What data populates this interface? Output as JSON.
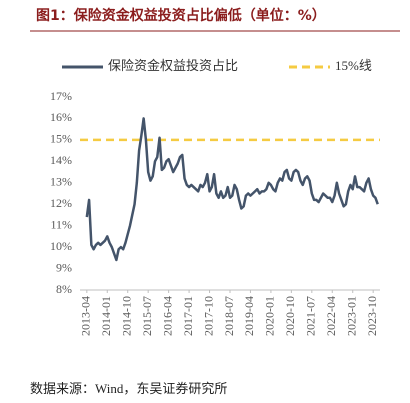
{
  "title": "图1：保险资金权益投资占比偏低（单位：%）",
  "source": "数据来源：Wind，东吴证券研究所",
  "chart_data": {
    "type": "line",
    "x": [
      "2013-04",
      "2013-05",
      "2013-06",
      "2013-07",
      "2013-08",
      "2013-09",
      "2013-10",
      "2013-11",
      "2013-12",
      "2014-01",
      "2014-02",
      "2014-03",
      "2014-04",
      "2014-05",
      "2014-06",
      "2014-07",
      "2014-08",
      "2014-09",
      "2014-10",
      "2014-11",
      "2014-12",
      "2015-01",
      "2015-02",
      "2015-03",
      "2015-04",
      "2015-05",
      "2015-06",
      "2015-07",
      "2015-08",
      "2015-09",
      "2015-10",
      "2015-11",
      "2015-12",
      "2016-01",
      "2016-02",
      "2016-03",
      "2016-04",
      "2016-05",
      "2016-06",
      "2016-07",
      "2016-08",
      "2016-09",
      "2016-10",
      "2016-11",
      "2016-12",
      "2017-01",
      "2017-02",
      "2017-03",
      "2017-04",
      "2017-05",
      "2017-06",
      "2017-07",
      "2017-08",
      "2017-09",
      "2017-10",
      "2017-11",
      "2017-12",
      "2018-01",
      "2018-02",
      "2018-03",
      "2018-04",
      "2018-05",
      "2018-06",
      "2018-07",
      "2018-08",
      "2018-09",
      "2018-10",
      "2018-11",
      "2018-12",
      "2019-01",
      "2019-02",
      "2019-03",
      "2019-04",
      "2019-05",
      "2019-06",
      "2019-07",
      "2019-08",
      "2019-09",
      "2019-10",
      "2019-11",
      "2019-12",
      "2020-01",
      "2020-02",
      "2020-03",
      "2020-04",
      "2020-05",
      "2020-06",
      "2020-07",
      "2020-08",
      "2020-09",
      "2020-10",
      "2020-11",
      "2020-12",
      "2021-01",
      "2021-02",
      "2021-03",
      "2021-04",
      "2021-05",
      "2021-06",
      "2021-07",
      "2021-08",
      "2021-09",
      "2021-10",
      "2021-11",
      "2021-12",
      "2022-01",
      "2022-02",
      "2022-03",
      "2022-04",
      "2022-05",
      "2022-06",
      "2022-07",
      "2022-08",
      "2022-09",
      "2022-10",
      "2022-11",
      "2022-12",
      "2023-01",
      "2023-02",
      "2023-03",
      "2023-04",
      "2023-05",
      "2023-06",
      "2023-07",
      "2023-08",
      "2023-09",
      "2023-10",
      "2023-11",
      "2023-12"
    ],
    "series": [
      {
        "name": "保险资金权益投资占比",
        "color": "#44546a",
        "values": [
          11.4,
          12.2,
          10.1,
          9.9,
          10.1,
          10.2,
          10.1,
          10.2,
          10.3,
          10.5,
          10.2,
          10.0,
          9.7,
          9.4,
          9.9,
          10.0,
          9.9,
          10.2,
          10.6,
          11.0,
          11.5,
          12.0,
          13.0,
          14.5,
          15.2,
          16.0,
          15.0,
          13.5,
          13.1,
          13.3,
          14.0,
          14.2,
          15.1,
          13.6,
          13.7,
          14.0,
          14.1,
          13.8,
          13.5,
          13.7,
          13.9,
          14.2,
          14.3,
          13.2,
          12.9,
          12.8,
          12.9,
          12.8,
          12.7,
          12.6,
          12.9,
          12.8,
          13.0,
          13.4,
          12.6,
          12.8,
          13.4,
          12.5,
          12.3,
          12.6,
          12.3,
          12.4,
          12.8,
          12.3,
          12.4,
          12.9,
          12.7,
          12.2,
          11.8,
          11.9,
          12.4,
          12.5,
          12.4,
          12.5,
          12.6,
          12.7,
          12.5,
          12.6,
          12.6,
          12.7,
          13.0,
          12.9,
          12.7,
          12.6,
          13.0,
          13.2,
          13.1,
          13.5,
          13.6,
          13.2,
          13.1,
          13.5,
          13.6,
          13.5,
          13.1,
          12.9,
          13.2,
          13.3,
          13.1,
          12.5,
          12.2,
          12.2,
          12.1,
          12.3,
          12.5,
          12.4,
          12.3,
          12.3,
          12.1,
          12.4,
          13.0,
          12.5,
          12.2,
          11.9,
          12.0,
          12.6,
          12.9,
          12.7,
          13.3,
          12.8,
          12.8,
          12.7,
          12.6,
          13.0,
          13.2,
          12.7,
          12.4,
          12.3,
          12.0
        ]
      }
    ],
    "reference_lines": [
      {
        "name": "15%线",
        "value": 15,
        "color": "#f5cb42"
      }
    ],
    "xlim": [
      "2013-01",
      "2024-01"
    ],
    "xticks": [
      "2013-04",
      "2014-01",
      "2014-10",
      "2015-07",
      "2016-04",
      "2017-01",
      "2017-10",
      "2018-07",
      "2019-04",
      "2020-01",
      "2020-10",
      "2021-07",
      "2022-04",
      "2023-01",
      "2023-10"
    ],
    "ylim": [
      8,
      17
    ],
    "yticks": [
      {
        "value": 8,
        "label": "8%"
      },
      {
        "value": 9,
        "label": "9%"
      },
      {
        "value": 10,
        "label": "10%"
      },
      {
        "value": 11,
        "label": "11%"
      },
      {
        "value": 12,
        "label": "12%"
      },
      {
        "value": 13,
        "label": "13%"
      },
      {
        "value": 14,
        "label": "14%"
      },
      {
        "value": 15,
        "label": "15%"
      },
      {
        "value": 16,
        "label": "16%"
      },
      {
        "value": 17,
        "label": "17%"
      }
    ],
    "grid": false
  }
}
